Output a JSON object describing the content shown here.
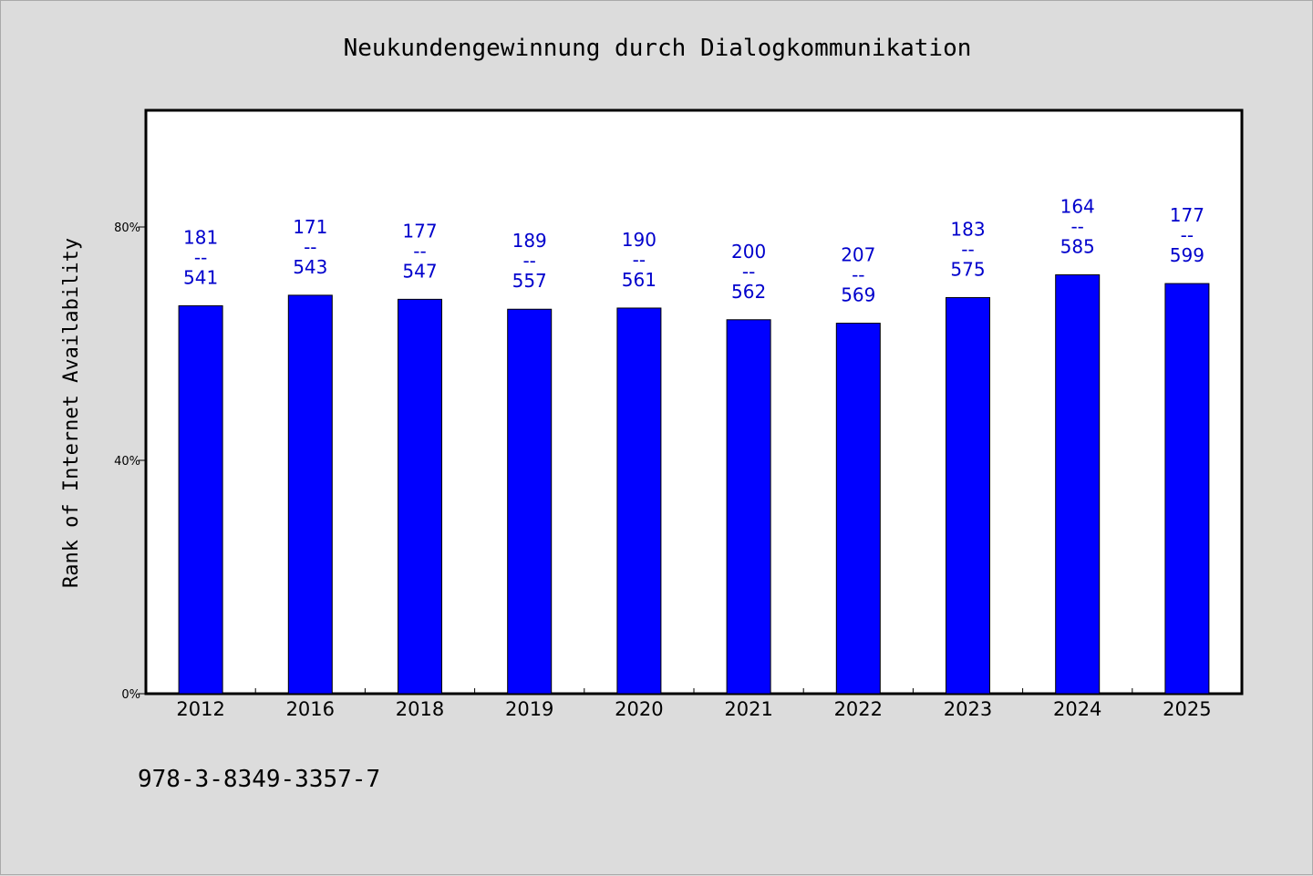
{
  "chart_data": {
    "type": "bar",
    "title": "Neukundengewinnung durch Dialogkommunikation",
    "ylabel": "Rank of Internet Availability",
    "xlabel": "",
    "ylim": [
      0,
      100
    ],
    "yticks": [
      {
        "value": 0,
        "label": "0%"
      },
      {
        "value": 40,
        "label": "40%"
      },
      {
        "value": 80,
        "label": "80%"
      }
    ],
    "categories": [
      "2012",
      "2016",
      "2018",
      "2019",
      "2020",
      "2021",
      "2022",
      "2023",
      "2024",
      "2025"
    ],
    "values": [
      66.5,
      68.3,
      67.6,
      65.9,
      66.1,
      64.1,
      63.5,
      67.9,
      71.8,
      70.3
    ],
    "bar_labels": [
      [
        "181",
        "--",
        "541"
      ],
      [
        "171",
        "--",
        "543"
      ],
      [
        "177",
        "--",
        "547"
      ],
      [
        "189",
        "--",
        "557"
      ],
      [
        "190",
        "--",
        "561"
      ],
      [
        "200",
        "--",
        "562"
      ],
      [
        "207",
        "--",
        "569"
      ],
      [
        "183",
        "--",
        "575"
      ],
      [
        "164",
        "--",
        "585"
      ],
      [
        "177",
        "--",
        "599"
      ]
    ],
    "grid": false,
    "legend": "none",
    "bar_color": "#0000ff",
    "label_color": "#0000cc"
  },
  "footer": {
    "text": "978-3-8349-3357-7"
  }
}
